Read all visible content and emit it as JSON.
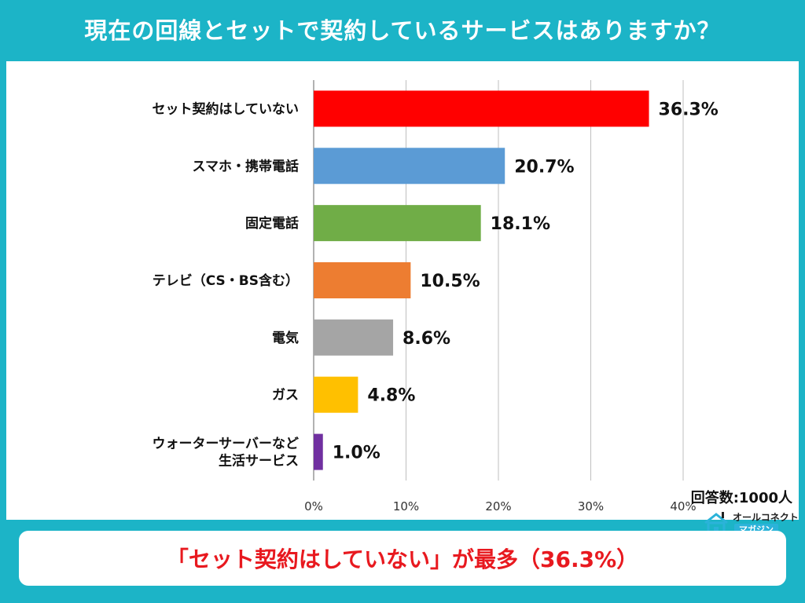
{
  "header": {
    "title": "現在の回線とセットで契約しているサービスはありますか？"
  },
  "chart_data": {
    "type": "bar",
    "orientation": "horizontal",
    "categories": [
      [
        "セット契約はしていない"
      ],
      [
        "スマホ・携帯電話"
      ],
      [
        "固定電話"
      ],
      [
        "テレビ（CS・BS含む）"
      ],
      [
        "電気"
      ],
      [
        "ガス"
      ],
      [
        "ウォーターサーバーなど",
        "生活サービス"
      ]
    ],
    "values": [
      36.3,
      20.7,
      18.1,
      10.5,
      8.6,
      4.8,
      1.0
    ],
    "value_labels": [
      "36.3%",
      "20.7%",
      "18.1%",
      "10.5%",
      "8.6%",
      "4.8%",
      "1.0%"
    ],
    "colors": [
      "#ff0000",
      "#5b9bd5",
      "#70ad47",
      "#ed7d31",
      "#a5a5a5",
      "#ffc000",
      "#7030a0"
    ],
    "xlim": [
      0,
      40
    ],
    "xticks": [
      "0%",
      "10%",
      "20%",
      "30%",
      "40%"
    ],
    "xtick_values": [
      0,
      10,
      20,
      30,
      40
    ],
    "grid": true,
    "title": "",
    "xlabel": "",
    "ylabel": ""
  },
  "note": "回答数:1000人",
  "logo": {
    "top": "オールコネクト",
    "bottom": "マガジン",
    "icon": "house-icon"
  },
  "footer": {
    "text": "「セット契約はしていない」が最多（36.3%）"
  }
}
